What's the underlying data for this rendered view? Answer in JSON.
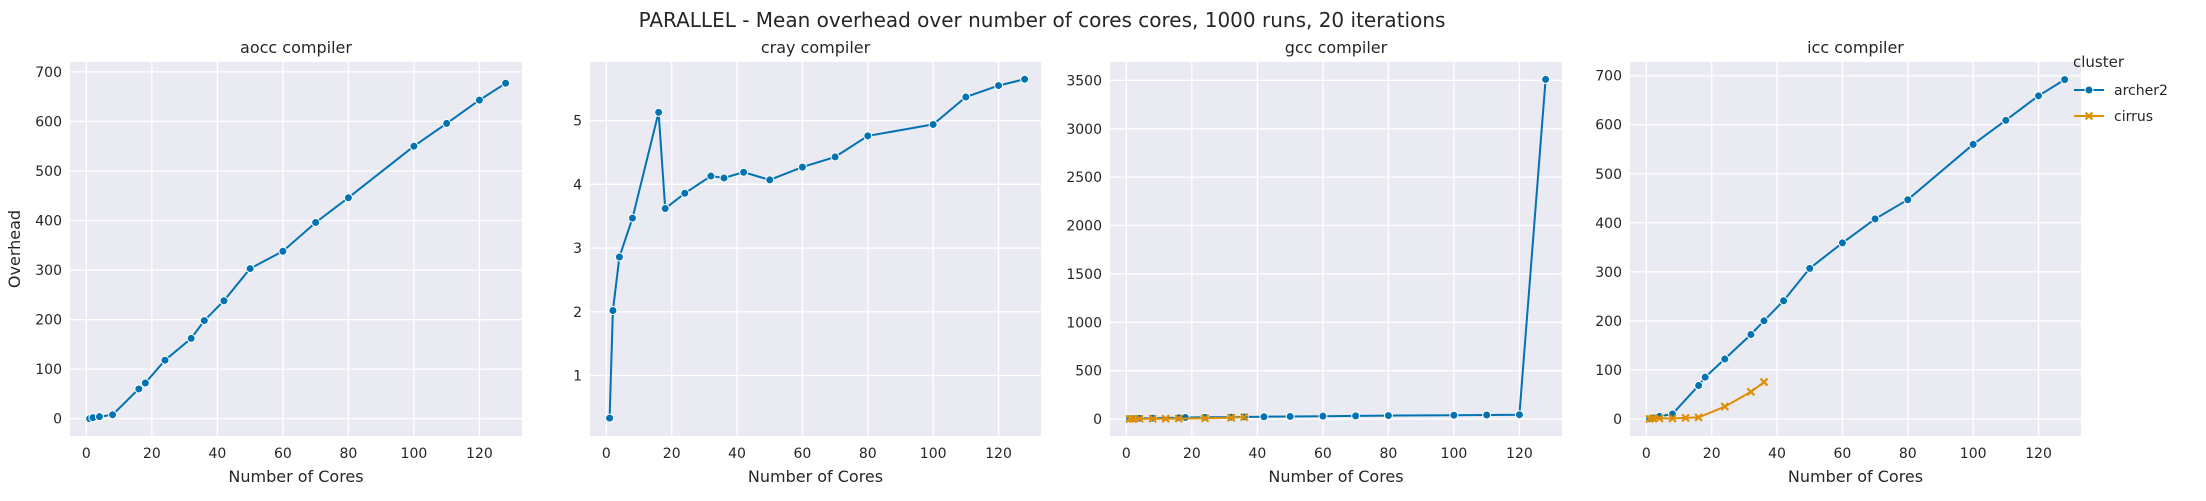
{
  "figure": {
    "title": "PARALLEL - Mean overhead over number of cores cores, 1000 runs, 20 iterations",
    "legend": {
      "title": "cluster",
      "placement": "right",
      "entries": [
        {
          "name": "archer2",
          "color": "#0173b2",
          "marker": "circle"
        },
        {
          "name": "cirrus",
          "color": "#de8f05",
          "marker": "x"
        }
      ]
    }
  },
  "chart_data": [
    {
      "type": "line",
      "title": "aocc compiler",
      "xlabel": "Number of Cores",
      "ylabel": "Overhead",
      "xlim": [
        -5,
        133
      ],
      "ylim": [
        -35,
        720
      ],
      "xticks": [
        0,
        20,
        40,
        60,
        80,
        100,
        120
      ],
      "yticks": [
        0,
        100,
        200,
        300,
        400,
        500,
        600,
        700
      ],
      "grid": true,
      "series": [
        {
          "name": "archer2",
          "color": "#0173b2",
          "marker": "circle",
          "x": [
            1,
            2,
            4,
            8,
            16,
            18,
            24,
            32,
            36,
            42,
            50,
            60,
            70,
            80,
            100,
            110,
            120,
            128
          ],
          "y": [
            0,
            2,
            4,
            8,
            60,
            72,
            118,
            162,
            198,
            238,
            303,
            338,
            396,
            446,
            550,
            596,
            643,
            677
          ]
        }
      ]
    },
    {
      "type": "line",
      "title": "cray compiler",
      "xlabel": "Number of Cores",
      "ylabel": "",
      "xlim": [
        -5,
        133
      ],
      "ylim": [
        0.05,
        5.92
      ],
      "xticks": [
        0,
        20,
        40,
        60,
        80,
        100,
        120
      ],
      "yticks": [
        1,
        2,
        3,
        4,
        5
      ],
      "grid": true,
      "series": [
        {
          "name": "archer2",
          "color": "#0173b2",
          "marker": "circle",
          "x": [
            1,
            2,
            4,
            8,
            16,
            18,
            24,
            32,
            36,
            42,
            50,
            60,
            70,
            80,
            100,
            110,
            120,
            128
          ],
          "y": [
            0.33,
            2.02,
            2.86,
            3.47,
            5.13,
            3.62,
            3.86,
            4.13,
            4.1,
            4.19,
            4.07,
            4.27,
            4.43,
            4.76,
            4.94,
            5.37,
            5.55,
            5.65
          ]
        }
      ]
    },
    {
      "type": "line",
      "title": "gcc compiler",
      "xlabel": "Number of Cores",
      "ylabel": "",
      "xlim": [
        -5,
        133
      ],
      "ylim": [
        -175,
        3690
      ],
      "xticks": [
        0,
        20,
        40,
        60,
        80,
        100,
        120
      ],
      "yticks": [
        0,
        500,
        1000,
        1500,
        2000,
        2500,
        3000,
        3500
      ],
      "grid": true,
      "series": [
        {
          "name": "archer2",
          "color": "#0173b2",
          "marker": "circle",
          "x": [
            1,
            2,
            4,
            8,
            16,
            18,
            24,
            32,
            36,
            42,
            50,
            60,
            70,
            80,
            100,
            110,
            120,
            128
          ],
          "y": [
            5,
            6,
            8,
            10,
            14,
            16,
            18,
            20,
            22,
            24,
            27,
            30,
            33,
            36,
            40,
            42,
            45,
            3510
          ]
        },
        {
          "name": "cirrus",
          "color": "#de8f05",
          "marker": "x",
          "x": [
            1,
            2,
            4,
            8,
            12,
            16,
            24,
            32,
            36
          ],
          "y": [
            2,
            2,
            3,
            3,
            4,
            5,
            8,
            14,
            20
          ]
        }
      ]
    },
    {
      "type": "line",
      "title": "icc compiler",
      "xlabel": "Number of Cores",
      "ylabel": "",
      "xlim": [
        -5,
        133
      ],
      "ylim": [
        -35,
        728
      ],
      "xticks": [
        0,
        20,
        40,
        60,
        80,
        100,
        120
      ],
      "yticks": [
        0,
        100,
        200,
        300,
        400,
        500,
        600,
        700
      ],
      "grid": true,
      "series": [
        {
          "name": "archer2",
          "color": "#0173b2",
          "marker": "circle",
          "x": [
            1,
            2,
            4,
            8,
            16,
            18,
            24,
            32,
            36,
            42,
            50,
            60,
            70,
            80,
            100,
            110,
            120,
            128
          ],
          "y": [
            0,
            2,
            5,
            10,
            68,
            85,
            122,
            172,
            200,
            241,
            307,
            359,
            408,
            447,
            560,
            609,
            659,
            692
          ]
        },
        {
          "name": "cirrus",
          "color": "#de8f05",
          "marker": "x",
          "x": [
            1,
            2,
            4,
            8,
            12,
            16,
            24,
            32,
            36
          ],
          "y": [
            0,
            1,
            1,
            1,
            2,
            3,
            25,
            55,
            75
          ]
        }
      ]
    }
  ]
}
